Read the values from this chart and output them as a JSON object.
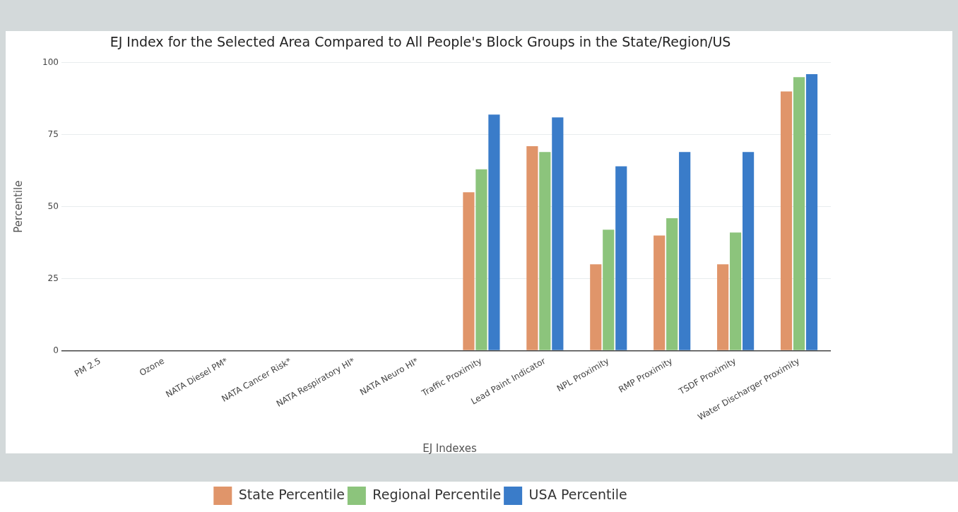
{
  "chart_data": {
    "type": "bar",
    "title": "EJ Index for the Selected Area Compared to All People's Block Groups in the State/Region/US",
    "xlabel": "EJ Indexes",
    "ylabel": "Percentile",
    "categories": [
      "PM 2.5",
      "Ozone",
      "NATA Diesel PM*",
      "NATA Cancer Risk*",
      "NATA Respiratory HI*",
      "NATA Neuro HI*",
      "Traffic Proximity",
      "Lead Paint Indicator",
      "NPL Proximity",
      "RMP Proximity",
      "TSDF Proximity",
      "Water Discharger Proximity"
    ],
    "series": [
      {
        "name": "State Percentile",
        "color": "#e0956a",
        "values": [
          null,
          null,
          null,
          null,
          null,
          null,
          55,
          71,
          30,
          40,
          30,
          90
        ]
      },
      {
        "name": "Regional Percentile",
        "color": "#8cc47c",
        "values": [
          null,
          null,
          null,
          null,
          null,
          null,
          63,
          69,
          42,
          46,
          41,
          95
        ]
      },
      {
        "name": "USA Percentile",
        "color": "#3a7cc9",
        "values": [
          null,
          null,
          null,
          null,
          null,
          null,
          82,
          81,
          64,
          69,
          69,
          96
        ]
      }
    ],
    "ylim": [
      0,
      100
    ],
    "yticks": [
      0,
      25,
      50,
      75,
      100
    ],
    "grid": "y",
    "legend": "bottom"
  }
}
